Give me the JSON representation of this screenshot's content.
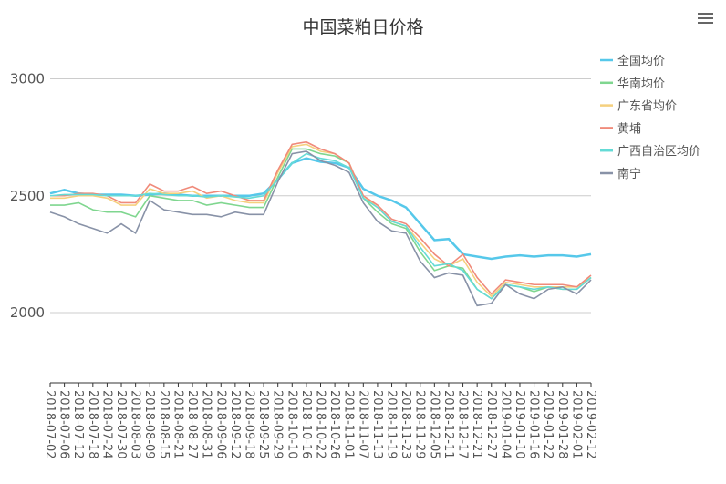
{
  "chart_data": {
    "type": "line",
    "title": "中国菜粕日价格",
    "categories": [
      "2018-07-02",
      "2018-07-06",
      "2018-07-12",
      "2018-07-18",
      "2018-07-24",
      "2018-07-30",
      "2018-08-03",
      "2018-08-09",
      "2018-08-15",
      "2018-08-21",
      "2018-08-27",
      "2018-08-31",
      "2018-09-06",
      "2018-09-12",
      "2018-09-18",
      "2018-09-25",
      "2018-09-29",
      "2018-10-10",
      "2018-10-16",
      "2018-10-22",
      "2018-10-26",
      "2018-11-01",
      "2018-11-07",
      "2018-11-13",
      "2018-11-19",
      "2018-11-23",
      "2018-11-29",
      "2018-12-05",
      "2018-12-11",
      "2018-12-17",
      "2018-12-21",
      "2018-12-27",
      "2019-01-04",
      "2019-01-10",
      "2019-01-16",
      "2019-01-22",
      "2019-01-28",
      "2019-02-01",
      "2019-02-12"
    ],
    "series": [
      {
        "name": "全国均价",
        "color": "#56c8ea",
        "values": [
          2510,
          2525,
          2510,
          2505,
          2505,
          2505,
          2500,
          2505,
          2510,
          2505,
          2500,
          2500,
          2500,
          2500,
          2500,
          2510,
          2570,
          2640,
          2660,
          2645,
          2640,
          2620,
          2530,
          2500,
          2480,
          2450,
          2380,
          2310,
          2315,
          2250,
          2240,
          2230,
          2240,
          2245,
          2240,
          2245,
          2245,
          2240,
          2250
        ]
      },
      {
        "name": "华南均价",
        "color": "#7fd68f",
        "values": [
          2460,
          2460,
          2470,
          2440,
          2430,
          2430,
          2410,
          2500,
          2490,
          2480,
          2480,
          2460,
          2470,
          2460,
          2450,
          2450,
          2580,
          2700,
          2700,
          2680,
          2670,
          2640,
          2490,
          2430,
          2380,
          2360,
          2260,
          2180,
          2200,
          2190,
          2100,
          2060,
          2120,
          2110,
          2090,
          2110,
          2100,
          2100,
          2150
        ]
      },
      {
        "name": "广东省均价",
        "color": "#f5d07e",
        "values": [
          2490,
          2490,
          2500,
          2500,
          2490,
          2460,
          2460,
          2530,
          2510,
          2510,
          2520,
          2490,
          2500,
          2480,
          2470,
          2470,
          2600,
          2710,
          2720,
          2690,
          2680,
          2640,
          2500,
          2450,
          2390,
          2370,
          2300,
          2230,
          2200,
          2230,
          2130,
          2070,
          2130,
          2120,
          2110,
          2110,
          2110,
          2110,
          2150
        ]
      },
      {
        "name": "黄埔",
        "color": "#f08a7a",
        "values": [
          2500,
          2500,
          2510,
          2510,
          2500,
          2470,
          2470,
          2550,
          2520,
          2520,
          2540,
          2510,
          2520,
          2500,
          2480,
          2480,
          2610,
          2720,
          2730,
          2700,
          2680,
          2640,
          2500,
          2460,
          2400,
          2380,
          2320,
          2250,
          2200,
          2250,
          2150,
          2080,
          2140,
          2130,
          2120,
          2120,
          2120,
          2110,
          2160
        ]
      },
      {
        "name": "广西自治区均价",
        "color": "#64dbd6",
        "values": [
          2500,
          2505,
          2505,
          2505,
          2500,
          2500,
          2500,
          2510,
          2505,
          2500,
          2500,
          2495,
          2500,
          2495,
          2490,
          2500,
          2570,
          2640,
          2680,
          2660,
          2650,
          2620,
          2490,
          2450,
          2390,
          2370,
          2280,
          2200,
          2210,
          2180,
          2100,
          2060,
          2120,
          2110,
          2100,
          2110,
          2100,
          2100,
          2150
        ]
      },
      {
        "name": "南宁",
        "color": "#8892a7",
        "values": [
          2430,
          2410,
          2380,
          2360,
          2340,
          2380,
          2340,
          2480,
          2440,
          2430,
          2420,
          2420,
          2410,
          2430,
          2420,
          2420,
          2560,
          2680,
          2690,
          2650,
          2630,
          2600,
          2470,
          2390,
          2350,
          2340,
          2220,
          2150,
          2170,
          2160,
          2030,
          2040,
          2120,
          2080,
          2060,
          2100,
          2110,
          2080,
          2140
        ]
      }
    ],
    "ylim": [
      1700,
      3150
    ],
    "yticks": [
      2000,
      2500,
      3000
    ],
    "grid": true,
    "legend": "right"
  }
}
